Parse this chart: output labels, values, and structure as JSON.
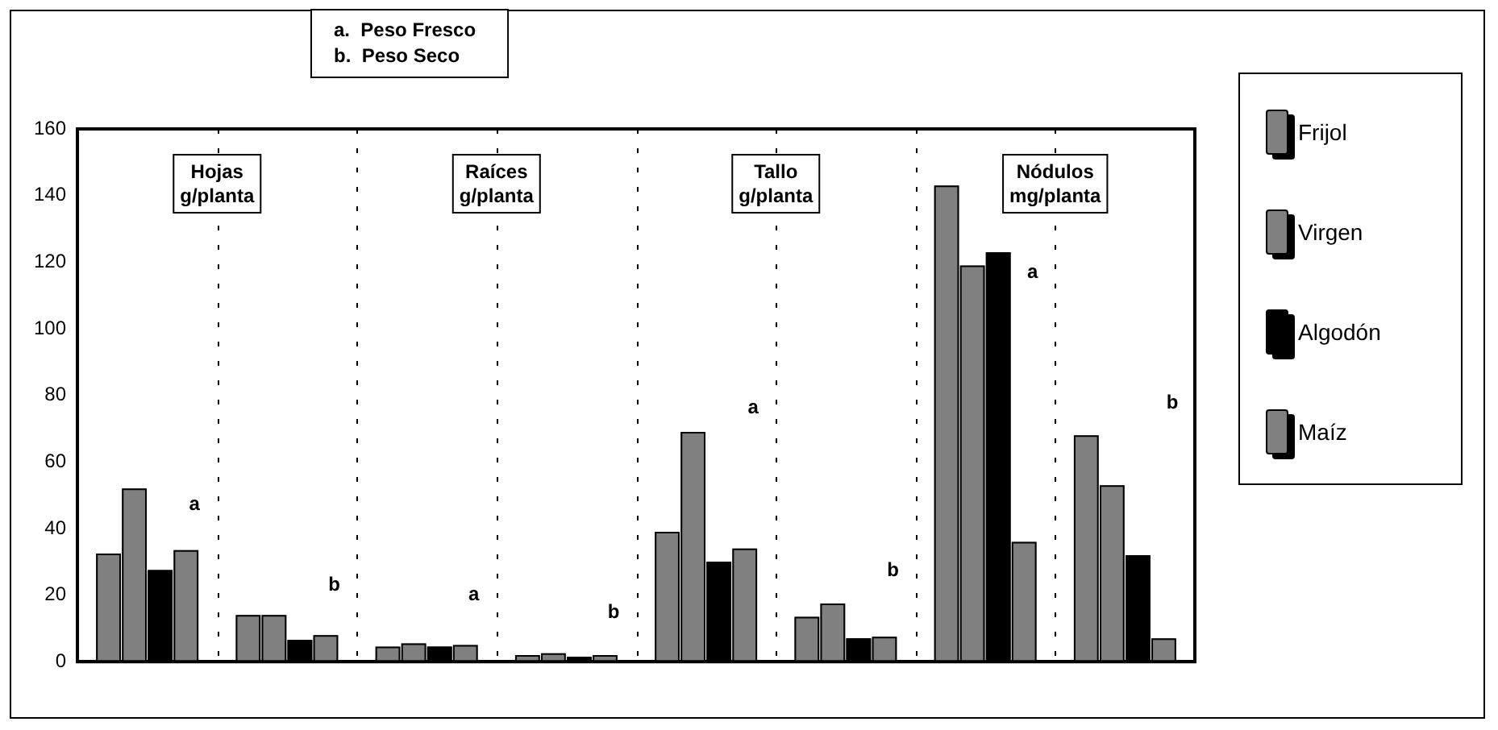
{
  "chart_data": {
    "type": "bar",
    "categories": [
      null,
      null,
      null,
      null,
      null,
      null,
      null,
      null
    ],
    "series": [
      {
        "name": "Frijol",
        "color": "#808080",
        "values": [
          32.5,
          14,
          4.5,
          2,
          39,
          13.5,
          143,
          68
        ]
      },
      {
        "name": "Virgen",
        "color": "#808080",
        "values": [
          52,
          14,
          5.5,
          2.5,
          69,
          17.5,
          119,
          53
        ]
      },
      {
        "name": "Algodón",
        "color": "#000000",
        "values": [
          27.5,
          6.5,
          4.5,
          1.5,
          30,
          7,
          123,
          32
        ]
      },
      {
        "name": "Maíz",
        "color": "#808080",
        "values": [
          33.5,
          8,
          5,
          2,
          34,
          7.5,
          36,
          7
        ]
      }
    ],
    "ylim": [
      0,
      160
    ],
    "yticks": [
      0,
      20,
      40,
      60,
      80,
      100,
      120,
      140,
      160
    ],
    "grid": "x",
    "legend": "right",
    "annotations": [
      "a.  Peso Fresco",
      "b.  Peso Seco",
      "Hojas\ng/planta",
      "Raíces\ng/planta",
      "Tallo\ng/planta",
      "Nódulos\nmg/planta",
      "a",
      "b",
      "a",
      "b",
      "a",
      "b",
      "a",
      "b"
    ]
  }
}
